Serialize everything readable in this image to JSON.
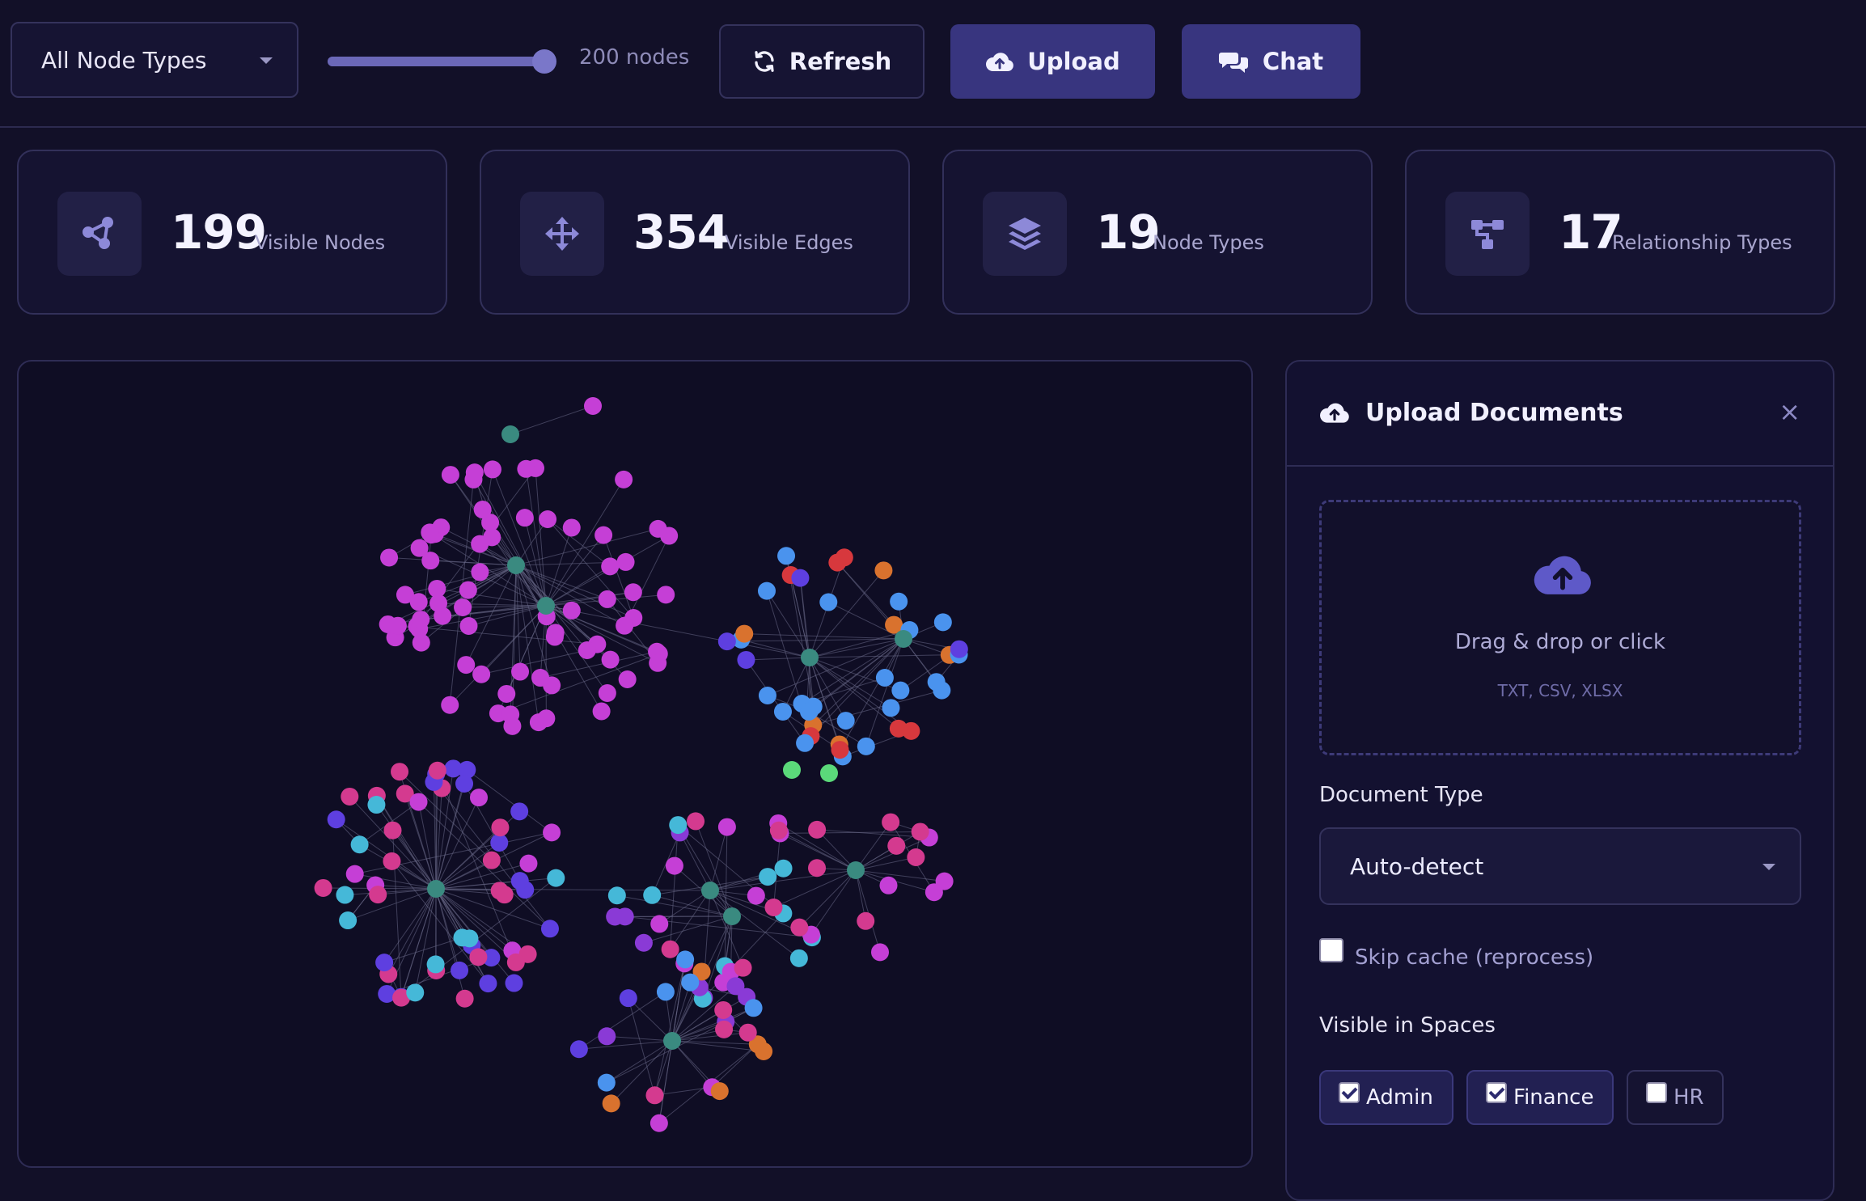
{
  "toolbar": {
    "node_type_filter": "All Node Types",
    "node_limit": {
      "value": 200,
      "max": 200,
      "fraction": 1.0,
      "label": "200 nodes"
    },
    "refresh_label": "Refresh",
    "upload_label": "Upload",
    "chat_label": "Chat"
  },
  "stats": [
    {
      "value": "199",
      "label": "Visible Nodes",
      "icon": "graph-nodes-icon"
    },
    {
      "value": "354",
      "label": "Visible Edges",
      "icon": "arrows-move-icon"
    },
    {
      "value": "19",
      "label": "Node Types",
      "icon": "layers-icon"
    },
    {
      "value": "17",
      "label": "Relationship Types",
      "icon": "relationship-icon"
    }
  ],
  "graph": {
    "colors": {
      "hub": "#3a8a80",
      "magenta": "#c53fd6",
      "pink": "#d43a8f",
      "violet": "#5e3fe0",
      "purple": "#8a3ad6",
      "blue": "#4a93ee",
      "cyan": "#45b8d8",
      "orange": "#d9722e",
      "red": "#d7383d",
      "green": "#5bd97a",
      "edge": "#6a6a88"
    }
  },
  "upload_panel": {
    "title": "Upload Documents",
    "close": "×",
    "dropzone_text": "Drag & drop or click",
    "dropzone_formats": "TXT, CSV, XLSX",
    "document_type_label": "Document Type",
    "document_type_value": "Auto-detect",
    "skip_cache_label": "Skip cache (reprocess)",
    "skip_cache_checked": false,
    "spaces_label": "Visible in Spaces",
    "spaces": [
      {
        "name": "Admin",
        "checked": true
      },
      {
        "name": "Finance",
        "checked": true
      },
      {
        "name": "HR",
        "checked": false
      }
    ]
  }
}
